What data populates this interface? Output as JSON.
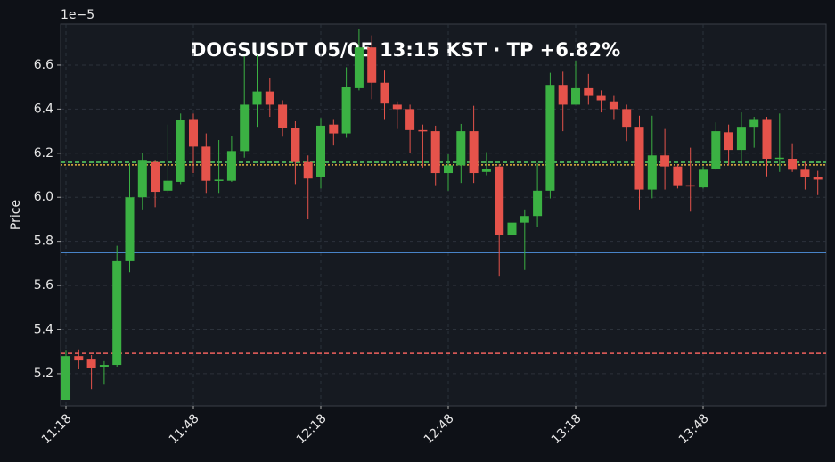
{
  "chart_data": {
    "type": "candlestick",
    "title": "DOGSUSDT  05/05 13:15 KST  ·  TP +6.82%",
    "ylabel": "Price",
    "y_offset_label": "1e−5",
    "categories": [
      "11:18",
      null,
      null,
      null,
      null,
      null,
      null,
      null,
      null,
      null,
      "11:48",
      null,
      null,
      null,
      null,
      null,
      null,
      null,
      null,
      null,
      "12:18",
      null,
      null,
      null,
      null,
      null,
      null,
      null,
      null,
      null,
      "12:48",
      null,
      null,
      null,
      null,
      null,
      null,
      null,
      null,
      null,
      "13:18",
      null,
      null,
      null,
      null,
      null,
      null,
      null,
      null,
      null,
      "13:48",
      null,
      null,
      null,
      null,
      null,
      null,
      null,
      null,
      null
    ],
    "open": [
      5.079,
      5.28,
      5.264,
      5.228,
      5.24,
      5.71,
      6.0,
      6.16,
      6.03,
      6.07,
      6.355,
      6.23,
      6.075,
      6.075,
      6.21,
      6.42,
      6.48,
      6.42,
      6.315,
      6.16,
      6.09,
      6.33,
      6.29,
      6.495,
      6.68,
      6.52,
      6.42,
      6.4,
      6.305,
      6.3,
      6.11,
      6.145,
      6.3,
      6.115,
      6.14,
      5.83,
      5.885,
      5.915,
      6.03,
      6.51,
      6.42,
      6.495,
      6.46,
      6.435,
      6.4,
      6.32,
      6.035,
      6.19,
      6.14,
      6.055,
      6.045,
      6.13,
      6.295,
      6.215,
      6.32,
      6.355,
      6.175,
      6.175,
      6.125,
      6.09
    ],
    "high": [
      5.308,
      5.31,
      5.285,
      5.257,
      5.78,
      6.155,
      6.2,
      6.17,
      6.33,
      6.38,
      6.38,
      6.29,
      6.26,
      6.28,
      6.64,
      6.645,
      6.54,
      6.44,
      6.345,
      6.19,
      6.36,
      6.355,
      6.59,
      6.765,
      6.735,
      6.575,
      6.435,
      6.42,
      6.33,
      6.325,
      6.195,
      6.333,
      6.415,
      6.205,
      6.15,
      6.0,
      5.945,
      6.155,
      6.565,
      6.57,
      6.62,
      6.56,
      6.485,
      6.46,
      6.42,
      6.37,
      6.37,
      6.31,
      6.15,
      6.225,
      6.14,
      6.34,
      6.33,
      6.385,
      6.365,
      6.365,
      6.38,
      6.245,
      6.16,
      6.12
    ],
    "low": [
      5.079,
      5.22,
      5.13,
      5.15,
      5.23,
      5.66,
      5.945,
      5.955,
      6.02,
      6.06,
      6.11,
      6.02,
      6.02,
      6.07,
      6.18,
      6.32,
      6.365,
      6.275,
      6.06,
      5.9,
      6.04,
      6.235,
      6.27,
      6.485,
      6.445,
      6.355,
      6.31,
      6.2,
      6.135,
      6.055,
      6.03,
      6.065,
      6.065,
      6.1,
      5.64,
      5.725,
      5.67,
      5.865,
      5.995,
      6.3,
      6.42,
      6.42,
      6.385,
      6.355,
      6.255,
      5.945,
      5.995,
      6.035,
      6.04,
      5.935,
      6.04,
      6.125,
      6.145,
      6.145,
      6.225,
      6.095,
      6.115,
      6.115,
      6.035,
      6.01
    ],
    "close": [
      5.28,
      5.26,
      5.224,
      5.24,
      5.71,
      6.0,
      6.17,
      6.025,
      6.075,
      6.35,
      6.23,
      6.075,
      6.08,
      6.21,
      6.42,
      6.48,
      6.42,
      6.315,
      6.16,
      6.085,
      6.325,
      6.29,
      6.5,
      6.68,
      6.52,
      6.425,
      6.4,
      6.305,
      6.3,
      6.11,
      6.145,
      6.3,
      6.11,
      6.13,
      5.83,
      5.885,
      5.915,
      6.03,
      6.51,
      6.42,
      6.495,
      6.46,
      6.44,
      6.4,
      6.32,
      6.035,
      6.19,
      6.14,
      6.055,
      6.05,
      6.125,
      6.3,
      6.215,
      6.32,
      6.355,
      6.175,
      6.18,
      6.125,
      6.09,
      6.08
    ],
    "up_color": "#3bb143",
    "down_color": "#e5534b",
    "hlines": [
      {
        "value": 5.75,
        "color": "#58a6ff",
        "style": "solid"
      },
      {
        "value": 5.292,
        "color": "#f0625d",
        "style": "dashed"
      },
      {
        "value": 6.159,
        "color": "#56d364",
        "style": "dashed"
      },
      {
        "value": 6.147,
        "color": "#e3b341",
        "style": "dotted"
      }
    ],
    "xlim": [
      -0.42,
      59.65
    ],
    "ylim": [
      5.054,
      6.786
    ],
    "yticks": [
      {
        "value": 5.2,
        "label": "5.2"
      },
      {
        "value": 5.4,
        "label": "5.4"
      },
      {
        "value": 5.6,
        "label": "5.6"
      },
      {
        "value": 5.8,
        "label": "5.8"
      },
      {
        "value": 6.0,
        "label": "6.0"
      },
      {
        "value": 6.2,
        "label": "6.2"
      },
      {
        "value": 6.4,
        "label": "6.4"
      },
      {
        "value": 6.6,
        "label": "6.6"
      }
    ],
    "grid": true
  }
}
